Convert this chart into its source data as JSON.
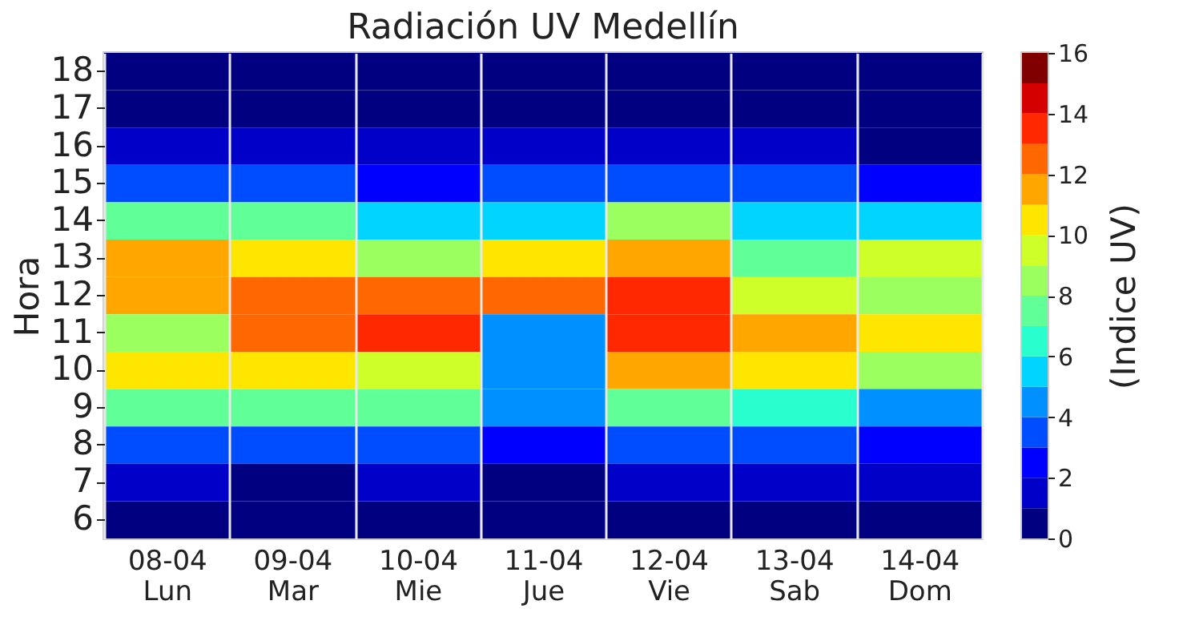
{
  "chart_data": {
    "type": "heatmap",
    "title": "Radiación UV Medellín",
    "ylabel": "Hora",
    "clabel": "(Indice UV)",
    "categories": [
      "08-04\nLun",
      "09-04\nMar",
      "10-04\nMie",
      "11-04\nJue",
      "12-04\nVie",
      "13-04\nSab",
      "14-04\nDom"
    ],
    "y_categories": [
      "18",
      "17",
      "16",
      "15",
      "14",
      "13",
      "12",
      "11",
      "10",
      "9",
      "8",
      "7",
      "6"
    ],
    "cells": [
      [
        0.5,
        0.5,
        0.5,
        0.5,
        0.5,
        0.5,
        0.5
      ],
      [
        0.5,
        0.5,
        0.5,
        0.5,
        0.5,
        0.5,
        0.5
      ],
      [
        1.5,
        1.5,
        1.5,
        1.5,
        1.5,
        1.5,
        0.5
      ],
      [
        3.5,
        3.5,
        2.5,
        3.5,
        3.5,
        3.5,
        2.5
      ],
      [
        7.5,
        7.5,
        5.5,
        5.5,
        8.5,
        5.5,
        5.5
      ],
      [
        11.5,
        10.5,
        8.5,
        10.5,
        11.5,
        7.5,
        9.5
      ],
      [
        11.5,
        12.5,
        12.5,
        12.5,
        13.5,
        9.5,
        8.5
      ],
      [
        8.5,
        12.5,
        13.5,
        4.5,
        13.5,
        11.5,
        10.5
      ],
      [
        10.5,
        10.5,
        9.5,
        4.5,
        11.5,
        10.5,
        8.5
      ],
      [
        7.5,
        7.5,
        7.5,
        4.5,
        7.5,
        6.5,
        4.5
      ],
      [
        3.5,
        3.5,
        3.5,
        2.5,
        3.5,
        3.5,
        2.5
      ],
      [
        1.5,
        0.5,
        1.5,
        0.5,
        1.5,
        1.5,
        1.5
      ],
      [
        0.5,
        0.5,
        0.5,
        0.5,
        0.5,
        0.5,
        0.5
      ]
    ],
    "clim": [
      0,
      16
    ],
    "cticks": [
      0,
      2,
      4,
      6,
      8,
      10,
      12,
      14,
      16
    ],
    "grid": "x"
  }
}
